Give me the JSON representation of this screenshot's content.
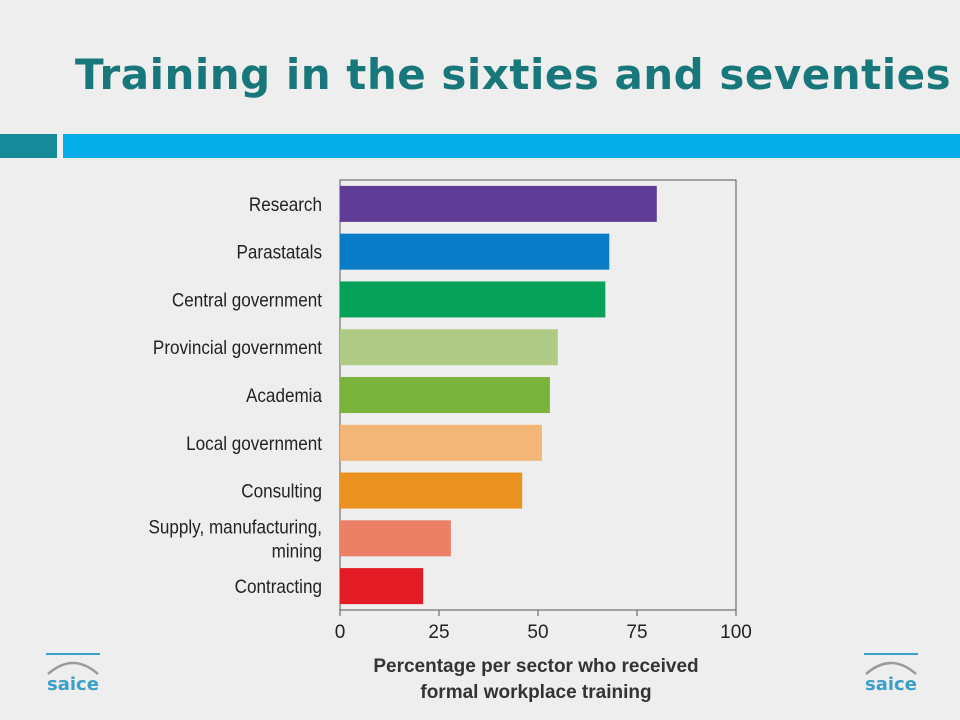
{
  "slide": {
    "title": "Training in the sixties and seventies",
    "accent_teal": "#178a9a",
    "accent_blue": "#06aee9"
  },
  "logos": {
    "left": "saice",
    "right": "saice"
  },
  "chart_data": {
    "type": "bar",
    "orientation": "horizontal",
    "categories": [
      "Research",
      "Parastatals",
      "Central government",
      "Provincial government",
      "Academia",
      "Local government",
      "Consulting",
      "Supply, manufacturing, mining",
      "Contracting"
    ],
    "category_lines": [
      [
        "Research"
      ],
      [
        "Parastatals"
      ],
      [
        "Central government"
      ],
      [
        "Provincial government"
      ],
      [
        "Academia"
      ],
      [
        "Local government"
      ],
      [
        "Consulting"
      ],
      [
        "Supply, manufacturing,",
        "mining"
      ],
      [
        "Contracting"
      ]
    ],
    "values": [
      80,
      68,
      67,
      55,
      53,
      51,
      46,
      28,
      21
    ],
    "colors": [
      "#5f3c96",
      "#0a7cc7",
      "#06a25a",
      "#afca84",
      "#7ab33c",
      "#f4b676",
      "#ea911f",
      "#ec8066",
      "#e21b24"
    ],
    "xlim": [
      0,
      100
    ],
    "xticks": [
      0,
      25,
      50,
      75,
      100
    ],
    "xlabel_lines": [
      "Percentage per sector who received",
      "formal workplace training"
    ],
    "grid": false
  }
}
